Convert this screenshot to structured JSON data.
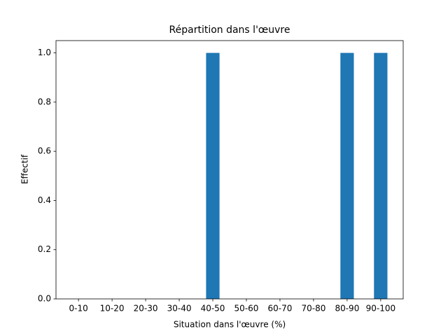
{
  "chart_data": {
    "type": "bar",
    "title": "Répartition dans l'œuvre",
    "x_label": "Situation dans l'œuvre (%)",
    "y_label": "Effectif",
    "categories": [
      "0-10",
      "10-20",
      "20-30",
      "30-40",
      "40-50",
      "50-60",
      "60-70",
      "70-80",
      "80-90",
      "90-100"
    ],
    "values": [
      0,
      0,
      0,
      0,
      1,
      0,
      0,
      0,
      1,
      1
    ],
    "color": "#1f77b4",
    "ylim": [
      0,
      1.05
    ],
    "yticks": [
      {
        "value": 0,
        "label": "0.0"
      },
      0.2,
      0.4,
      0.6,
      0.8,
      {
        "value": 1,
        "label": "1.0"
      }
    ],
    "grid": false
  }
}
